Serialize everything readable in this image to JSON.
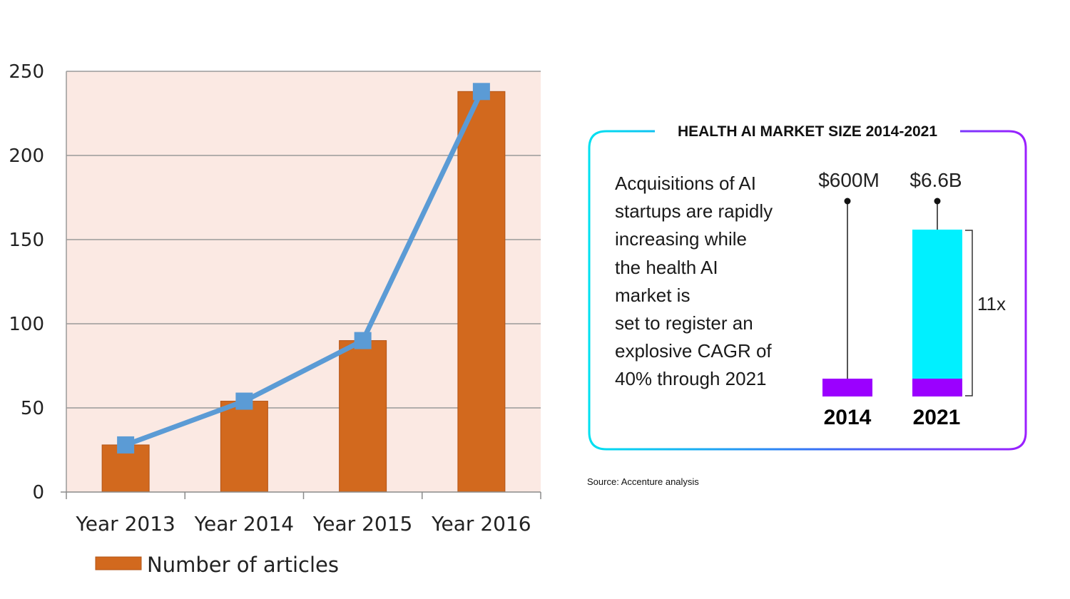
{
  "chart_data": [
    {
      "type": "bar",
      "categories": [
        "Year 2013",
        "Year 2014",
        "Year 2015",
        "Year 2016"
      ],
      "series": [
        {
          "name": "Number of articles",
          "values": [
            28,
            54,
            90,
            238
          ],
          "color": "#d2691e"
        }
      ],
      "line_overlay": {
        "values": [
          28,
          54,
          90,
          238
        ],
        "color": "#5b9bd5"
      },
      "ylim": [
        0,
        250
      ],
      "yticks": [
        "0",
        "50",
        "100",
        "150",
        "200",
        "250"
      ],
      "grid": true,
      "plot_background": "#fbe9e3",
      "legend_position": "bottom-left"
    },
    {
      "type": "bar",
      "title": "HEALTH AI MARKET SIZE 2014-2021",
      "categories": [
        "2014",
        "2021"
      ],
      "value_labels": [
        "$600M",
        "$6.6B"
      ],
      "values_usd": [
        600000000,
        6600000000
      ],
      "multiplier_label": "11x",
      "colors": {
        "base": "#9b00ff",
        "growth": "#00f0ff"
      }
    }
  ],
  "infobox": {
    "title": "HEALTH AI MARKET SIZE 2014-2021",
    "body_lines": [
      "Acquisitions of AI",
      "startups are rapidly",
      "increasing while",
      "the health AI",
      "market is",
      "set to register an",
      "explosive CAGR of",
      "40% through 2021"
    ],
    "bars": [
      {
        "year": "2014",
        "value_label": "$600M"
      },
      {
        "year": "2021",
        "value_label": "$6.6B"
      }
    ],
    "multiplier": "11x"
  },
  "source": "Source: Accenture analysis"
}
